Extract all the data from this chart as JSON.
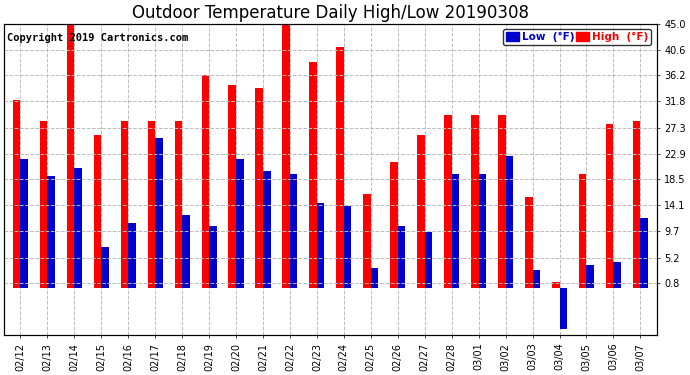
{
  "title": "Outdoor Temperature Daily High/Low 20190308",
  "copyright": "Copyright 2019 Cartronics.com",
  "legend_low": "Low  (°F)",
  "legend_high": "High  (°F)",
  "dates": [
    "02/12",
    "02/13",
    "02/14",
    "02/15",
    "02/16",
    "02/17",
    "02/18",
    "02/19",
    "02/20",
    "02/21",
    "02/22",
    "02/23",
    "02/24",
    "02/25",
    "02/26",
    "02/27",
    "02/28",
    "03/01",
    "03/02",
    "03/03",
    "03/04",
    "03/05",
    "03/06",
    "03/07"
  ],
  "highs": [
    32.0,
    28.5,
    46.0,
    26.0,
    28.5,
    28.5,
    28.5,
    36.2,
    34.5,
    34.0,
    45.0,
    38.5,
    41.0,
    16.0,
    21.5,
    26.0,
    29.5,
    29.5,
    29.5,
    15.5,
    1.0,
    19.5,
    28.0,
    28.5
  ],
  "lows": [
    22.0,
    19.0,
    20.5,
    7.0,
    11.0,
    25.5,
    12.5,
    10.5,
    22.0,
    20.0,
    19.5,
    14.5,
    14.0,
    3.5,
    10.5,
    9.5,
    19.5,
    19.5,
    22.5,
    3.0,
    -7.0,
    4.0,
    4.5,
    12.0
  ],
  "bar_color_high": "#ff0000",
  "bar_color_low": "#0000cc",
  "background_color": "#ffffff",
  "grid_color": "#bbbbbb",
  "ylim": [
    -8.0,
    45.0
  ],
  "yticks": [
    0.8,
    5.2,
    9.7,
    14.1,
    18.5,
    22.9,
    27.3,
    31.8,
    36.2,
    40.6,
    45.0
  ],
  "ytick_labels": [
    "0.8",
    "5.2",
    "9.7",
    "14.1",
    "18.5",
    "22.9",
    "27.3",
    "31.8",
    "36.2",
    "40.6",
    "45.0"
  ],
  "title_fontsize": 12,
  "copyright_fontsize": 7.5,
  "tick_fontsize": 7,
  "bar_width": 0.28
}
